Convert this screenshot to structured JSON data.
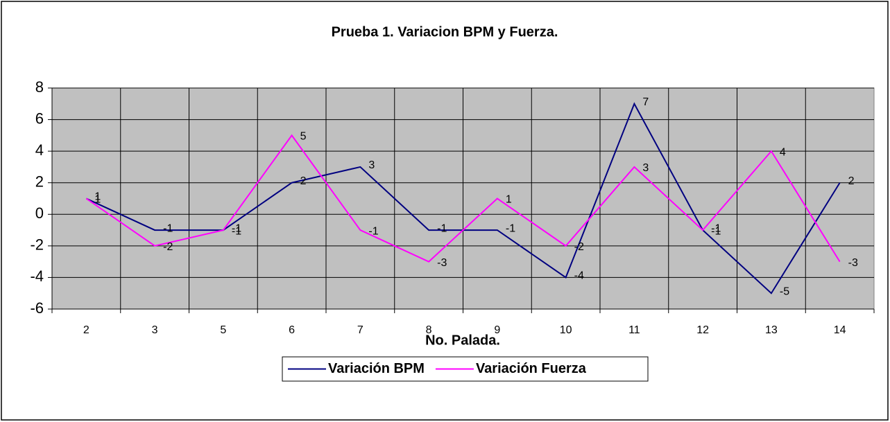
{
  "chart_data": {
    "type": "line",
    "title": "Prueba 1. Variacion BPM y Fuerza.",
    "x_label": "No. Palada.",
    "categories": [
      "2",
      "3",
      "5",
      "6",
      "7",
      "8",
      "9",
      "10",
      "11",
      "12",
      "13",
      "14"
    ],
    "series": [
      {
        "name": "Variación BPM",
        "color": "#000080",
        "values": [
          1,
          -1,
          -1,
          2,
          3,
          -1,
          -1,
          -4,
          7,
          -1,
          -5,
          2
        ]
      },
      {
        "name": "Variación Fuerza",
        "color": "#ff00ff",
        "values": [
          1,
          -2,
          -1,
          5,
          -1,
          -3,
          1,
          -2,
          3,
          -1,
          4,
          -3
        ]
      }
    ],
    "ylim": [
      -6,
      8
    ],
    "yticks": [
      -6,
      -4,
      -2,
      0,
      2,
      4,
      6,
      8
    ],
    "grid": true,
    "legend": "bottom"
  }
}
